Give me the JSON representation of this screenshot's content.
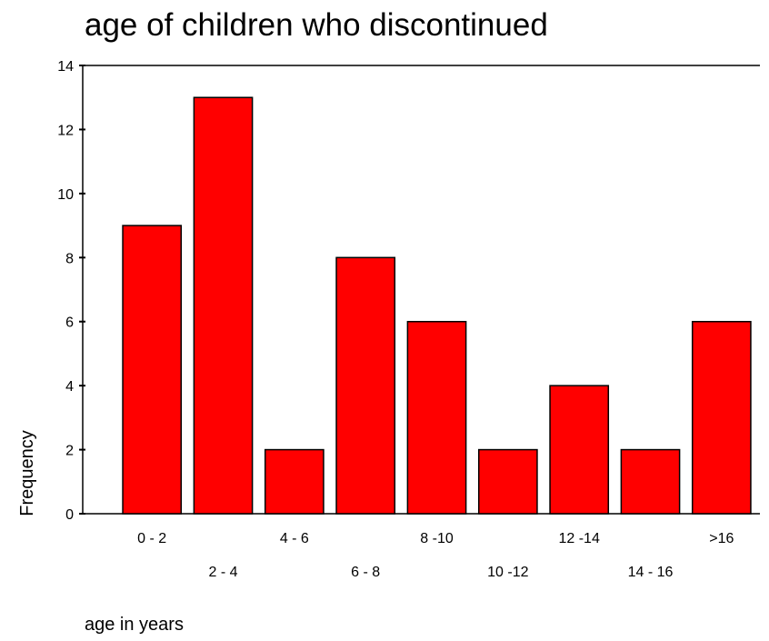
{
  "chart_data": {
    "type": "bar",
    "title": "age of children who discontinued",
    "xlabel": "age in years",
    "ylabel": "Frequency",
    "categories": [
      "0 - 2",
      "2 - 4",
      "4 - 6",
      "6 - 8",
      "8 -10",
      "10 -12",
      "12 -14",
      "14 - 16",
      ">16"
    ],
    "values": [
      9,
      13,
      2,
      8,
      6,
      2,
      4,
      2,
      6
    ],
    "ylim": [
      0,
      14
    ],
    "yticks": [
      0,
      2,
      4,
      6,
      8,
      10,
      12,
      14
    ],
    "grid": false,
    "bar_color": "#ff0000",
    "bar_edge_color": "#000000"
  }
}
